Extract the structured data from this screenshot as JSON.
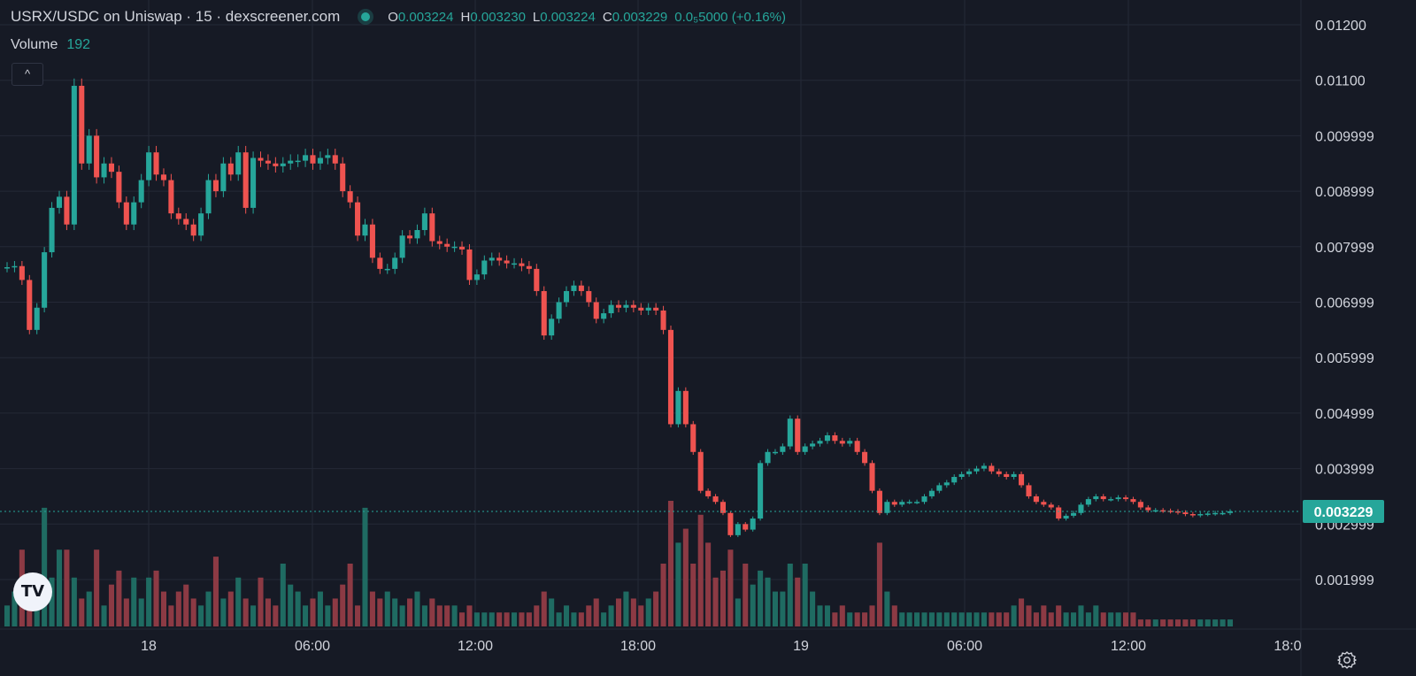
{
  "header": {
    "title": "USRX/USDC on Uniswap · 15 · dexscreener.com",
    "ohlc": [
      {
        "key": "O",
        "value": "0.003224"
      },
      {
        "key": "H",
        "value": "0.003230"
      },
      {
        "key": "L",
        "value": "0.003224"
      },
      {
        "key": "C",
        "value": "0.003229"
      },
      {
        "key": "",
        "value": "0.0₅5000 (+0.16%)"
      }
    ]
  },
  "volume_legend": {
    "label": "Volume",
    "value": "192"
  },
  "collapse_label": "^",
  "logo_text": "TV",
  "colors": {
    "background": "#161a25",
    "grid": "#242936",
    "up": "#26a69a",
    "down": "#ef5350",
    "up_volume": "#1f6b62",
    "down_volume": "#8c3a44",
    "price_tag": "#26a69a"
  },
  "icons": {
    "status": "live-dot",
    "settings": "gear-icon",
    "logo": "tradingview-logo"
  },
  "chart_data": {
    "type": "candlestick",
    "y_ticks": [
      "0.01200",
      "0.01100",
      "0.009999",
      "0.008999",
      "0.007999",
      "0.006999",
      "0.005999",
      "0.004999",
      "0.003999",
      "0.002999",
      "0.001999"
    ],
    "x_ticks": [
      "18",
      "06:00",
      "12:00",
      "18:00",
      "19",
      "06:00",
      "12:00",
      "18:0"
    ],
    "ylim": [
      0.0013,
      0.0122
    ],
    "current_price": 0.003229,
    "current_price_label": "0.003229",
    "grid": true,
    "close_series": [
      0.00763,
      0.00765,
      0.0074,
      0.0065,
      0.0069,
      0.0079,
      0.0087,
      0.0089,
      0.0084,
      0.0109,
      0.0095,
      0.01,
      0.00925,
      0.0095,
      0.00935,
      0.0088,
      0.0084,
      0.0088,
      0.0092,
      0.0097,
      0.0093,
      0.0092,
      0.0086,
      0.0085,
      0.0084,
      0.0082,
      0.0086,
      0.0092,
      0.009,
      0.0095,
      0.0093,
      0.0097,
      0.0087,
      0.0096,
      0.00955,
      0.0095,
      0.00945,
      0.0095,
      0.00955,
      0.00955,
      0.00965,
      0.0095,
      0.0096,
      0.00965,
      0.0095,
      0.009,
      0.0088,
      0.0082,
      0.0084,
      0.0078,
      0.0076,
      0.0076,
      0.0078,
      0.0082,
      0.00815,
      0.0083,
      0.0086,
      0.0081,
      0.00805,
      0.008,
      0.008,
      0.00795,
      0.0074,
      0.0075,
      0.00775,
      0.0078,
      0.00775,
      0.0077,
      0.0077,
      0.00765,
      0.0076,
      0.0072,
      0.0064,
      0.0067,
      0.007,
      0.0072,
      0.0073,
      0.0072,
      0.007,
      0.0067,
      0.0068,
      0.00695,
      0.0069,
      0.00695,
      0.0069,
      0.00685,
      0.0069,
      0.00685,
      0.0065,
      0.0048,
      0.0054,
      0.0048,
      0.0043,
      0.0036,
      0.0035,
      0.0034,
      0.0032,
      0.0028,
      0.003,
      0.0029,
      0.0031,
      0.0041,
      0.0043,
      0.0043,
      0.0044,
      0.0049,
      0.0043,
      0.0044,
      0.00445,
      0.0045,
      0.0046,
      0.0045,
      0.00445,
      0.0045,
      0.0043,
      0.0041,
      0.0036,
      0.0032,
      0.0034,
      0.00335,
      0.0034,
      0.0034,
      0.0034,
      0.0035,
      0.0036,
      0.0037,
      0.00375,
      0.00385,
      0.0039,
      0.00395,
      0.004,
      0.00405,
      0.00395,
      0.0039,
      0.00385,
      0.0039,
      0.0037,
      0.0035,
      0.0034,
      0.00335,
      0.0033,
      0.0031,
      0.00315,
      0.0032,
      0.00335,
      0.00345,
      0.0035,
      0.00345,
      0.00345,
      0.00348,
      0.00345,
      0.0034,
      0.0033,
      0.00325,
      0.00325,
      0.00324,
      0.00323,
      0.00321,
      0.00318,
      0.00316,
      0.00318,
      0.00319,
      0.0032,
      0.0032,
      0.00323
    ],
    "volume_values": [
      15,
      25,
      55,
      20,
      30,
      85,
      35,
      55,
      55,
      35,
      20,
      25,
      55,
      15,
      30,
      40,
      20,
      35,
      20,
      35,
      40,
      25,
      15,
      25,
      30,
      20,
      15,
      25,
      50,
      20,
      25,
      35,
      20,
      15,
      35,
      20,
      15,
      45,
      30,
      25,
      15,
      20,
      25,
      15,
      20,
      30,
      45,
      15,
      85,
      25,
      20,
      25,
      20,
      15,
      20,
      25,
      15,
      20,
      15,
      15,
      15,
      10,
      15,
      10,
      10,
      10,
      10,
      10,
      10,
      10,
      10,
      15,
      25,
      20,
      10,
      15,
      10,
      10,
      15,
      20,
      10,
      15,
      20,
      25,
      20,
      15,
      20,
      25,
      45,
      90,
      60,
      70,
      45,
      80,
      60,
      35,
      40,
      55,
      20,
      45,
      30,
      40,
      35,
      25,
      25,
      45,
      35,
      45,
      25,
      15,
      15,
      10,
      15,
      10,
      10,
      10,
      15,
      60,
      25,
      15,
      10,
      10,
      10,
      10,
      10,
      10,
      10,
      10,
      10,
      10,
      10,
      10,
      10,
      10,
      10,
      15,
      20,
      15,
      10,
      15,
      10,
      15,
      10,
      10,
      15,
      10,
      15,
      10,
      10,
      10,
      10,
      10,
      5,
      5,
      5,
      5,
      5,
      5,
      5,
      5,
      5,
      5,
      5,
      5,
      5
    ]
  }
}
